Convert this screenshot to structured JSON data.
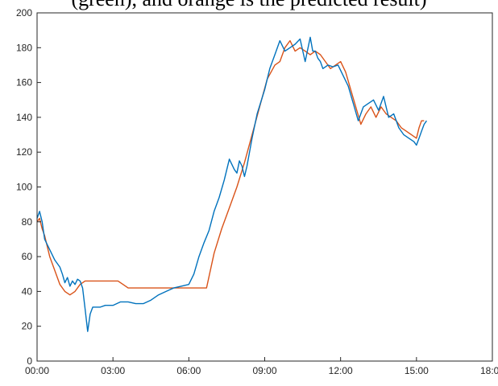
{
  "caption_fragment": "(green), and orange is the predicted result)",
  "chart_data": {
    "type": "line",
    "title": "",
    "xlabel": "",
    "ylabel": "",
    "xlim": [
      "00:00",
      "18:00"
    ],
    "ylim": [
      0,
      200
    ],
    "xticks": [
      "00:00",
      "03:00",
      "06:00",
      "09:00",
      "12:00",
      "15:00",
      "18:00"
    ],
    "yticks": [
      0,
      20,
      40,
      60,
      80,
      100,
      120,
      140,
      160,
      180,
      200
    ],
    "grid": false,
    "legend": "none",
    "series": [
      {
        "color": "#0072BD",
        "x": [
          "00:00",
          "00:06",
          "00:12",
          "00:18",
          "00:30",
          "00:42",
          "00:54",
          "01:00",
          "01:06",
          "01:12",
          "01:18",
          "01:24",
          "01:30",
          "01:36",
          "01:42",
          "01:48",
          "01:54",
          "02:00",
          "02:06",
          "02:12",
          "02:18",
          "02:30",
          "02:42",
          "03:00",
          "03:18",
          "03:36",
          "03:54",
          "04:12",
          "04:30",
          "04:48",
          "05:06",
          "05:24",
          "05:42",
          "06:00",
          "06:12",
          "06:24",
          "06:36",
          "06:48",
          "07:00",
          "07:12",
          "07:24",
          "07:36",
          "07:48",
          "07:54",
          "08:00",
          "08:06",
          "08:12",
          "08:18",
          "08:30",
          "08:42",
          "09:00",
          "09:12",
          "09:24",
          "09:36",
          "09:48",
          "10:00",
          "10:12",
          "10:24",
          "10:36",
          "10:48",
          "10:54",
          "11:00",
          "11:06",
          "11:12",
          "11:18",
          "11:30",
          "11:42",
          "11:54",
          "12:06",
          "12:18",
          "12:30",
          "12:42",
          "12:54",
          "13:06",
          "13:18",
          "13:30",
          "13:42",
          "13:54",
          "14:06",
          "14:18",
          "14:30",
          "14:42",
          "14:54",
          "15:00",
          "15:06",
          "15:12",
          "15:18",
          "15:24"
        ],
        "y": [
          82,
          86,
          80,
          70,
          64,
          58,
          54,
          50,
          45,
          48,
          43,
          46,
          44,
          47,
          46,
          42,
          30,
          17,
          27,
          31,
          31,
          31,
          32,
          32,
          34,
          34,
          33,
          33,
          35,
          38,
          40,
          42,
          43,
          44,
          50,
          60,
          68,
          75,
          86,
          94,
          104,
          116,
          110,
          108,
          115,
          112,
          106,
          112,
          128,
          142,
          156,
          168,
          176,
          184,
          178,
          180,
          182,
          185,
          172,
          186,
          178,
          178,
          174,
          172,
          168,
          170,
          169,
          170,
          164,
          158,
          148,
          138,
          146,
          148,
          150,
          144,
          152,
          140,
          142,
          134,
          130,
          128,
          126,
          124,
          128,
          132,
          136,
          138
        ]
      },
      {
        "color": "#D95319",
        "x": [
          "00:00",
          "00:06",
          "00:12",
          "00:18",
          "00:30",
          "00:42",
          "00:54",
          "01:06",
          "01:18",
          "01:30",
          "01:42",
          "01:54",
          "02:00",
          "02:18",
          "02:36",
          "02:54",
          "03:12",
          "03:24",
          "03:36",
          "04:00",
          "04:30",
          "05:00",
          "05:30",
          "06:00",
          "06:30",
          "06:42",
          "07:00",
          "07:18",
          "07:36",
          "07:54",
          "08:12",
          "08:30",
          "08:48",
          "09:06",
          "09:24",
          "09:36",
          "09:48",
          "10:00",
          "10:12",
          "10:24",
          "10:36",
          "10:48",
          "11:00",
          "11:12",
          "11:24",
          "11:36",
          "11:48",
          "12:00",
          "12:12",
          "12:24",
          "12:36",
          "12:48",
          "13:00",
          "13:12",
          "13:24",
          "13:36",
          "13:48",
          "14:00",
          "14:12",
          "14:24",
          "14:36",
          "14:48",
          "15:00",
          "15:06",
          "15:12",
          "15:18"
        ],
        "y": [
          80,
          82,
          76,
          72,
          60,
          52,
          44,
          40,
          38,
          40,
          44,
          46,
          46,
          46,
          46,
          46,
          46,
          44,
          42,
          42,
          42,
          42,
          42,
          42,
          42,
          42,
          62,
          76,
          88,
          100,
          114,
          130,
          146,
          162,
          170,
          172,
          180,
          184,
          178,
          180,
          178,
          176,
          178,
          176,
          172,
          168,
          170,
          172,
          166,
          156,
          146,
          136,
          142,
          146,
          140,
          146,
          142,
          140,
          138,
          134,
          132,
          130,
          128,
          134,
          138,
          138
        ]
      }
    ]
  }
}
